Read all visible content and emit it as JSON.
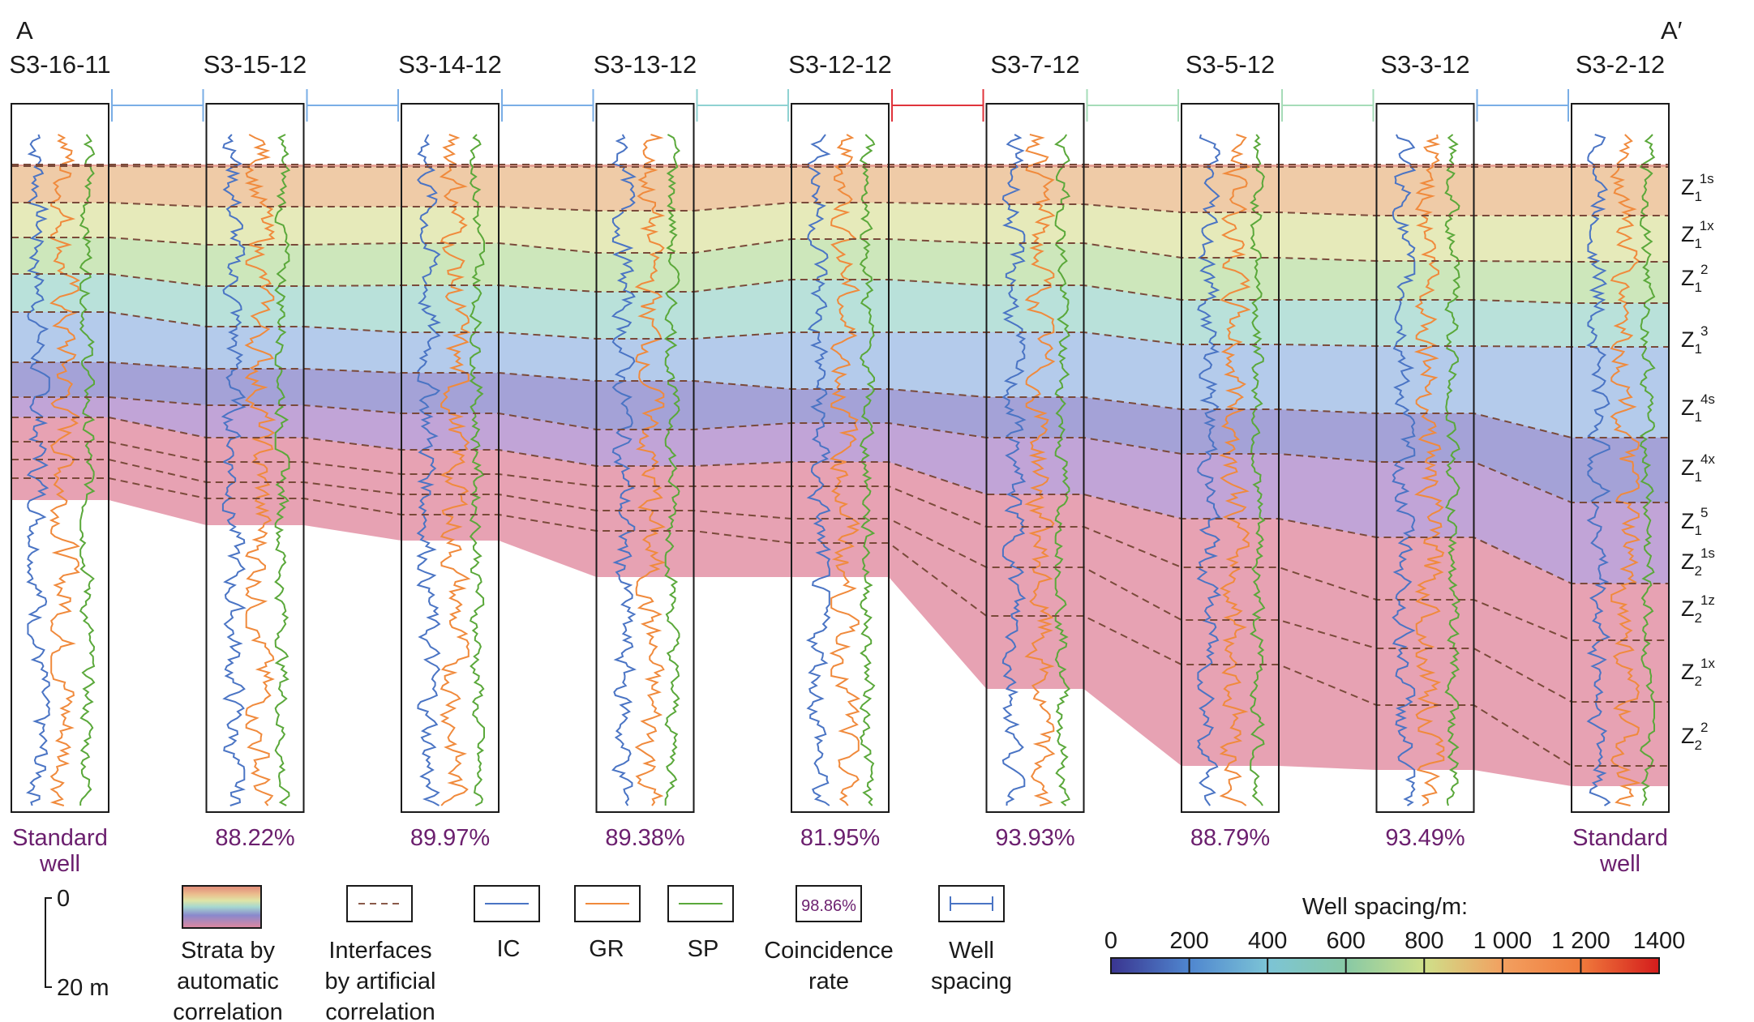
{
  "section": {
    "start": "A",
    "end": "A′"
  },
  "wells": [
    {
      "name": "S3-16-11",
      "rate": "Standard\nwell"
    },
    {
      "name": "S3-15-12",
      "rate": "88.22%"
    },
    {
      "name": "S3-14-12",
      "rate": "89.97%"
    },
    {
      "name": "S3-13-12",
      "rate": "89.38%"
    },
    {
      "name": "S3-12-12",
      "rate": "81.95%"
    },
    {
      "name": "S3-7-12",
      "rate": "93.93%"
    },
    {
      "name": "S3-5-12",
      "rate": "88.79%"
    },
    {
      "name": "S3-3-12",
      "rate": "93.49%"
    },
    {
      "name": "S3-2-12",
      "rate": "Standard\nwell"
    }
  ],
  "spacing_colors": [
    "#7aaee6",
    "#7aaee6",
    "#7aaee6",
    "#8fd2d2",
    "#e0343c",
    "#a6dcb8",
    "#a6dcb8",
    "#7aaee6"
  ],
  "zones": [
    {
      "main": "Z",
      "sub": "1",
      "sup": "1s"
    },
    {
      "main": "Z",
      "sub": "1",
      "sup": "1x"
    },
    {
      "main": "Z",
      "sub": "1",
      "sup": "2"
    },
    {
      "main": "Z",
      "sub": "1",
      "sup": "3"
    },
    {
      "main": "Z",
      "sub": "1",
      "sup": "4s"
    },
    {
      "main": "Z",
      "sub": "1",
      "sup": "4x"
    },
    {
      "main": "Z",
      "sub": "1",
      "sup": "5"
    },
    {
      "main": "Z",
      "sub": "2",
      "sup": "1s"
    },
    {
      "main": "Z",
      "sub": "2",
      "sup": "1z"
    },
    {
      "main": "Z",
      "sub": "2",
      "sup": "1x"
    },
    {
      "main": "Z",
      "sub": "2",
      "sup": "2"
    }
  ],
  "strata_colors": [
    "#e08878",
    "#ebbd8e",
    "#dfe4a6",
    "#bfe0a8",
    "#a5d8d0",
    "#9fbde6",
    "#8a88cc",
    "#b08acc",
    "#e0889e"
  ],
  "curve_colors": {
    "IC": "#4a74c4",
    "GR": "#f08a3c",
    "SP": "#5aa83a"
  },
  "scale": {
    "top": "0",
    "bottom": "20 m"
  },
  "legend": {
    "strata": "Strata by\nautomatic\ncorrelation",
    "interfaces": "Interfaces\nby artificial\ncorrelation",
    "ic": "IC",
    "gr": "GR",
    "sp": "SP",
    "coincidence": "Coincidence\nrate",
    "coincidence_sample": "98.86%",
    "spacing": "Well\nspacing"
  },
  "colorbar": {
    "title": "Well spacing/m:",
    "ticks": [
      "0",
      "200",
      "400",
      "600",
      "800",
      "1 000",
      "1 200",
      "1400"
    ],
    "colors": [
      "#3a3590",
      "#4f86cf",
      "#7cc4d6",
      "#88c9a5",
      "#cfe08a",
      "#f2a060",
      "#e23030"
    ]
  }
}
